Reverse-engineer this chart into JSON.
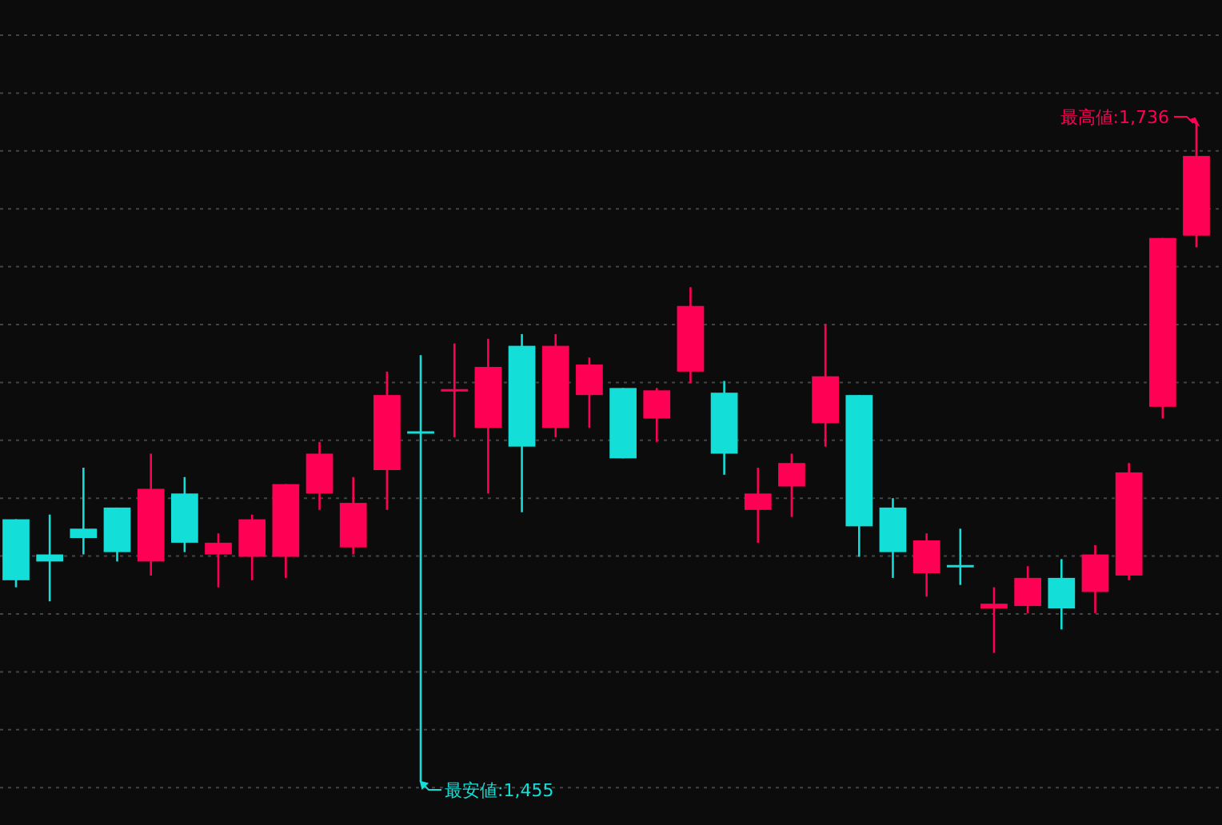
{
  "chart_data": {
    "type": "candlestick",
    "categories": [
      null,
      null,
      null,
      null,
      null,
      null,
      null,
      null,
      null,
      null,
      null,
      null,
      null,
      null,
      null,
      null,
      null,
      null,
      null,
      null,
      null,
      null,
      null,
      null,
      null,
      null,
      null,
      null,
      null,
      null,
      null,
      null,
      null,
      null,
      null,
      null
    ],
    "ohlc": [
      [
        1567,
        1567,
        1538,
        1541
      ],
      [
        1552,
        1569,
        1532,
        1549
      ],
      [
        1563,
        1589,
        1552,
        1559
      ],
      [
        1572,
        1572,
        1549,
        1553
      ],
      [
        1549,
        1595,
        1543,
        1580
      ],
      [
        1578,
        1585,
        1553,
        1557
      ],
      [
        1552,
        1561,
        1538,
        1557
      ],
      [
        1551,
        1569,
        1541,
        1567
      ],
      [
        1551,
        1582,
        1542,
        1582
      ],
      [
        1578,
        1600,
        1571,
        1595
      ],
      [
        1555,
        1585,
        1552,
        1574
      ],
      [
        1588,
        1630,
        1571,
        1620
      ],
      [
        1604,
        1637,
        1455,
        1604
      ],
      [
        1622,
        1642,
        1602,
        1622
      ],
      [
        1606,
        1644,
        1578,
        1632
      ],
      [
        1641,
        1646,
        1570,
        1598
      ],
      [
        1606,
        1646,
        1602,
        1641
      ],
      [
        1620,
        1636,
        1606,
        1633
      ],
      [
        1623,
        1623,
        1593,
        1593
      ],
      [
        1610,
        1623,
        1600,
        1622
      ],
      [
        1630,
        1666,
        1625,
        1658
      ],
      [
        1621,
        1626,
        1586,
        1595
      ],
      [
        1571,
        1589,
        1557,
        1578
      ],
      [
        1581,
        1595,
        1568,
        1591
      ],
      [
        1608,
        1650,
        1598,
        1628
      ],
      [
        1620,
        1620,
        1551,
        1564
      ],
      [
        1572,
        1576,
        1542,
        1553
      ],
      [
        1544,
        1561,
        1534,
        1558
      ],
      [
        1547,
        1563,
        1539,
        1547
      ],
      [
        1529,
        1538,
        1510,
        1531
      ],
      [
        1530,
        1547,
        1527,
        1542
      ],
      [
        1542,
        1550,
        1520,
        1529
      ],
      [
        1536,
        1556,
        1527,
        1552
      ],
      [
        1543,
        1591,
        1541,
        1587
      ],
      [
        1615,
        1687,
        1610,
        1687
      ],
      [
        1688,
        1736,
        1683,
        1722
      ]
    ],
    "colors": [
      "#13dfd8",
      "#13dfd8",
      "#13dfd8",
      "#13dfd8",
      "#ff0055",
      "#13dfd8",
      "#ff0055",
      "#ff0055",
      "#ff0055",
      "#ff0055",
      "#ff0055",
      "#ff0055",
      "#13dfd8",
      "#ff0055",
      "#ff0055",
      "#13dfd8",
      "#ff0055",
      "#ff0055",
      "#13dfd8",
      "#ff0055",
      "#ff0055",
      "#13dfd8",
      "#ff0055",
      "#ff0055",
      "#ff0055",
      "#13dfd8",
      "#13dfd8",
      "#ff0055",
      "#13dfd8",
      "#ff0055",
      "#ff0055",
      "#13dfd8",
      "#ff0055",
      "#ff0055",
      "#ff0055",
      "#ff0055"
    ],
    "annotations": [
      "最高値:1,736",
      "最安値:1,455"
    ],
    "grid": "y"
  }
}
